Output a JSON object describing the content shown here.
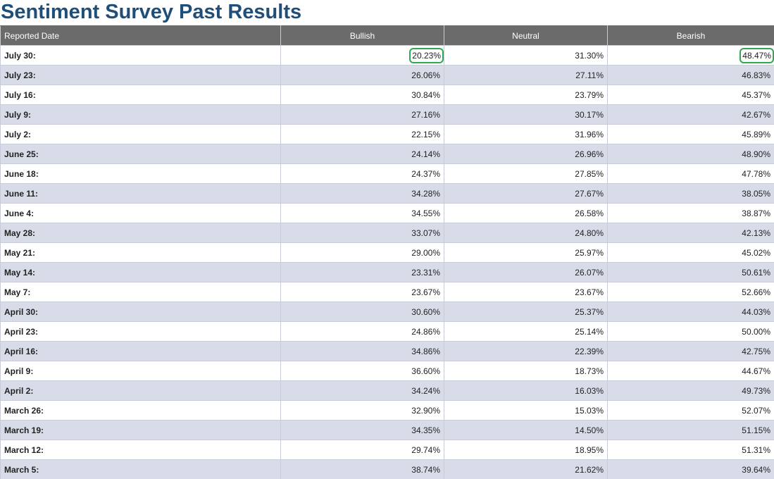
{
  "title": "Sentiment Survey Past Results",
  "accent_color": "#1f4e79",
  "highlight_color": "#2fa84f",
  "table": {
    "headers": [
      "Reported Date",
      "Bullish",
      "Neutral",
      "Bearish"
    ],
    "rows": [
      {
        "date": "July 30:",
        "bullish": "20.23%",
        "neutral": "31.30%",
        "bearish": "48.47%",
        "bullish_circled": true,
        "bearish_circled": true
      },
      {
        "date": "July 23:",
        "bullish": "26.06%",
        "neutral": "27.11%",
        "bearish": "46.83%"
      },
      {
        "date": "July 16:",
        "bullish": "30.84%",
        "neutral": "23.79%",
        "bearish": "45.37%"
      },
      {
        "date": "July 9:",
        "bullish": "27.16%",
        "neutral": "30.17%",
        "bearish": "42.67%"
      },
      {
        "date": "July 2:",
        "bullish": "22.15%",
        "neutral": "31.96%",
        "bearish": "45.89%"
      },
      {
        "date": "June 25:",
        "bullish": "24.14%",
        "neutral": "26.96%",
        "bearish": "48.90%"
      },
      {
        "date": "June 18:",
        "bullish": "24.37%",
        "neutral": "27.85%",
        "bearish": "47.78%"
      },
      {
        "date": "June 11:",
        "bullish": "34.28%",
        "neutral": "27.67%",
        "bearish": "38.05%"
      },
      {
        "date": "June 4:",
        "bullish": "34.55%",
        "neutral": "26.58%",
        "bearish": "38.87%"
      },
      {
        "date": "May 28:",
        "bullish": "33.07%",
        "neutral": "24.80%",
        "bearish": "42.13%"
      },
      {
        "date": "May 21:",
        "bullish": "29.00%",
        "neutral": "25.97%",
        "bearish": "45.02%"
      },
      {
        "date": "May 14:",
        "bullish": "23.31%",
        "neutral": "26.07%",
        "bearish": "50.61%"
      },
      {
        "date": "May 7:",
        "bullish": "23.67%",
        "neutral": "23.67%",
        "bearish": "52.66%"
      },
      {
        "date": "April 30:",
        "bullish": "30.60%",
        "neutral": "25.37%",
        "bearish": "44.03%"
      },
      {
        "date": "April 23:",
        "bullish": "24.86%",
        "neutral": "25.14%",
        "bearish": "50.00%"
      },
      {
        "date": "April 16:",
        "bullish": "34.86%",
        "neutral": "22.39%",
        "bearish": "42.75%"
      },
      {
        "date": "April 9:",
        "bullish": "36.60%",
        "neutral": "18.73%",
        "bearish": "44.67%"
      },
      {
        "date": "April 2:",
        "bullish": "34.24%",
        "neutral": "16.03%",
        "bearish": "49.73%"
      },
      {
        "date": "March 26:",
        "bullish": "32.90%",
        "neutral": "15.03%",
        "bearish": "52.07%"
      },
      {
        "date": "March 19:",
        "bullish": "34.35%",
        "neutral": "14.50%",
        "bearish": "51.15%"
      },
      {
        "date": "March 12:",
        "bullish": "29.74%",
        "neutral": "18.95%",
        "bearish": "51.31%"
      },
      {
        "date": "March 5:",
        "bullish": "38.74%",
        "neutral": "21.62%",
        "bearish": "39.64%"
      }
    ]
  }
}
